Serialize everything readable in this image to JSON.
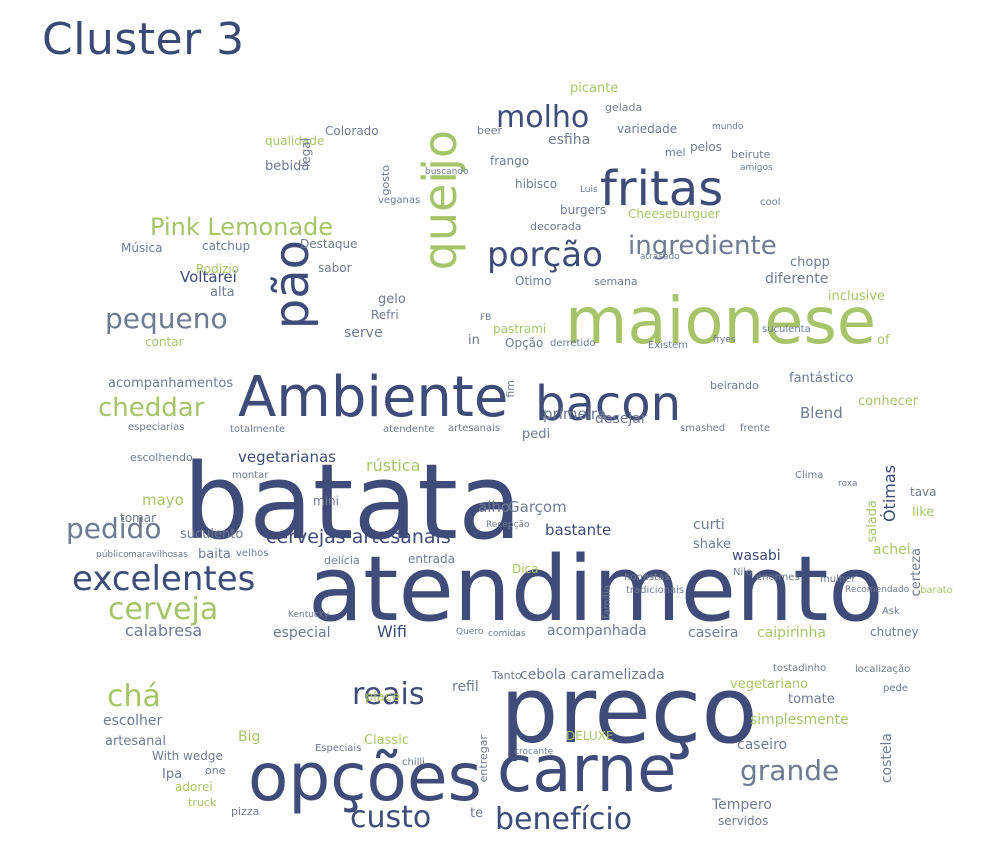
{
  "title": "Cluster 3",
  "words": {
    "atendimento": "atendimento",
    "batata": "batata",
    "preco": "preço",
    "carne": "carne",
    "opcoes": "opções",
    "maionese": "maionese",
    "ambiente": "Ambiente",
    "bacon": "bacon",
    "fritas": "fritas",
    "queijo": "queijo",
    "pao": "pão",
    "porcao": "porção",
    "excelentes": "excelentes",
    "cerveja": "cerveja",
    "pedido": "pedido",
    "custo": "custo",
    "beneficio": "benefício",
    "grande": "grande",
    "molho": "molho",
    "ingrediente": "ingrediente",
    "pink_lemonade": "Pink Lemonade",
    "pequeno": "pequeno",
    "cheddar": "cheddar",
    "reais": "reais",
    "cha": "chá",
    "cervejas_artesanais": "cervejas artesanais",
    "calabresa": "calabresa",
    "especial": "especial",
    "wifi": "Wifi",
    "acompanhada": "acompanhada",
    "caseira": "caseira",
    "caipirinha": "caipirinha",
    "chutney": "chutney",
    "suculento": "suculento",
    "baita": "baita",
    "velhos": "velhos",
    "vegetarianas": "vegetarianas",
    "rustica": "rústica",
    "mayo": "mayo",
    "tomar": "tomar",
    "alho": "alho",
    "garcom": "Garçom",
    "bastante": "bastante",
    "curti": "curti",
    "shake": "shake",
    "salada": "salada",
    "otimas": "Ótimas",
    "certeza": "certeza",
    "achei": "achei",
    "like": "like",
    "tava": "tava",
    "wasabi": "wasabi",
    "dica": "Dica",
    "entrada": "entrada",
    "delicia": "delícia",
    "escolhendo": "escolhendo",
    "primeira": "primeira",
    "desejar": "desejar",
    "pedi": "pedi",
    "fantastico": "fantástico",
    "conhecer": "conhecer",
    "blend": "Blend",
    "beirando": "beirando",
    "acompanhamentos": "acompanhamentos",
    "especiarias": "especiarias",
    "totalmente": "totalmente",
    "atendente": "atendente",
    "artesanais": "artesanais",
    "smashed": "smashed",
    "frente": "frente",
    "fim": "fim",
    "voltarei": "Voltarei",
    "musica": "Música",
    "catchup": "catchup",
    "destaque": "Destaque",
    "sabor": "sabor",
    "music": "music",
    "rodizio": "Rodizio",
    "alta": "alta",
    "serve": "serve",
    "gelo": "gelo",
    "refri": "Refri",
    "contar": "contar",
    "opcao": "Opção",
    "derretido": "derretido",
    "existem": "Existem",
    "suculenta": "suculenta",
    "inclusive": "inclusive",
    "diferente": "diferente",
    "chopp": "chopp",
    "otimo": "Otimo",
    "semana": "semana",
    "pastrami": "pastrami",
    "decorada": "decorada",
    "burgers": "burgers",
    "hibisco": "hibisco",
    "frango": "frango",
    "esfiha": "esfiha",
    "variedade": "variedade",
    "mel": "mel",
    "pelos": "pelos",
    "beirute": "beirute",
    "cheeseburguer": "Cheeseburguer",
    "colorado": "Colorado",
    "qualidade": "qualidade",
    "bebida": "bebida",
    "legal": "legal",
    "gosto": "gosto",
    "beer": "beer",
    "picante": "picante",
    "gelada": "gelada",
    "veganas": "veganas",
    "tempero": "Tempero",
    "servidos": "servidos",
    "costela": "costela",
    "caseiro": "caseiro",
    "simplesmente": "simplesmente",
    "vegetariano": "vegetariano",
    "tomate": "tomate",
    "artesanal": "artesanal",
    "escolher": "escolher",
    "big": "Big",
    "classic": "Classic",
    "deluxe": "DELUXE",
    "entregar": "entregar",
    "refil": "refil",
    "tanto": "Tanto",
    "cebola_caramelizada": "cebola caramelizada",
    "place": "place",
    "tostadinho": "tostadinho",
    "localizacao": "localização",
    "pede": "pede",
    "ipa": "Ipa",
    "pizza": "pizza",
    "one": "one",
    "adorei": "adorei",
    "with_wedge": "With wedge",
    "truck": "truck",
    "especiais": "Especiais",
    "recepcao": "Recepção",
    "mini": "mini",
    "montar": "montar",
    "familia": "família",
    "tradicionais": "tradicionais",
    "honestas": "honestas",
    "clima": "Clima",
    "roxa": "roxa",
    "nilo": "Nilo",
    "enormes": "enormes",
    "mulher": "mulher",
    "recomendado": "Recomendado",
    "barato": "barato",
    "ask": "Ask",
    "kentucky": "Kentucky",
    "quero": "Quero",
    "comidas": "comidas",
    "maravilhosas": "maravilhosas",
    "publico": "público",
    "atrasado": "atrasado",
    "in": "in",
    "te": "te",
    "of": "of",
    "fb": "FB",
    "fryes": "fryes",
    "crocante": "crocante",
    "chilli": "chilli",
    "amigos": "amigos",
    "cool": "cool",
    "mundo": "mundo",
    "luis": "Luis",
    "buscando": "buscando"
  }
}
